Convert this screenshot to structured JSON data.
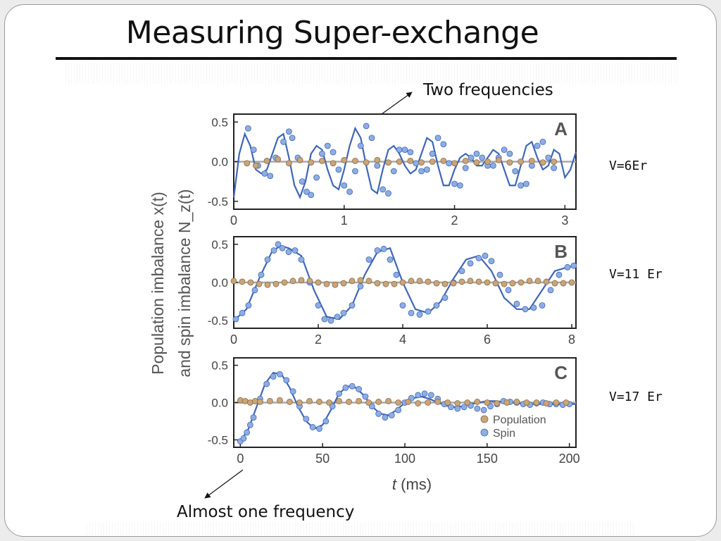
{
  "slide": {
    "title": "Measuring Super-exchange",
    "annotations": {
      "top": "Two frequencies",
      "bottom": "Almost one  frequency"
    },
    "side_labels": [
      "V=6Er",
      "V=11 Er",
      "V=17 Er"
    ]
  },
  "chart_data": [
    {
      "type": "scatter",
      "panel_label": "A",
      "xlim": [
        0,
        3.1
      ],
      "ylim": [
        -0.6,
        0.6
      ],
      "xticks": [
        0,
        1,
        2,
        3
      ],
      "yticks": [
        0.5,
        0.0,
        -0.5
      ],
      "ytick_labels": [
        "0.5",
        "0.0",
        "-0.5"
      ],
      "ylabel_lines": [
        "Population imbalance x(t)",
        "and spin imbalance N_z(t)"
      ],
      "series": [
        {
          "role": "spin-fit",
          "color": "#3f66b8",
          "x": [
            0.0,
            0.05,
            0.1,
            0.15,
            0.2,
            0.25,
            0.3,
            0.35,
            0.4,
            0.45,
            0.5,
            0.55,
            0.6,
            0.65,
            0.7,
            0.75,
            0.8,
            0.85,
            0.9,
            0.95,
            1.0,
            1.05,
            1.1,
            1.15,
            1.2,
            1.25,
            1.3,
            1.35,
            1.4,
            1.45,
            1.5,
            1.55,
            1.6,
            1.65,
            1.7,
            1.75,
            1.8,
            1.85,
            1.9,
            1.95,
            2.0,
            2.05,
            2.1,
            2.15,
            2.2,
            2.25,
            2.3,
            2.35,
            2.4,
            2.45,
            2.5,
            2.55,
            2.6,
            2.65,
            2.7,
            2.75,
            2.8,
            2.85,
            2.9,
            2.95,
            3.0,
            3.05,
            3.1
          ],
          "y": [
            -0.45,
            0.1,
            0.35,
            0.2,
            -0.1,
            -0.15,
            -0.1,
            0.1,
            0.3,
            0.35,
            0.05,
            -0.3,
            -0.45,
            -0.25,
            0.1,
            0.2,
            0.15,
            -0.1,
            -0.3,
            -0.35,
            -0.1,
            0.2,
            0.42,
            0.3,
            -0.05,
            -0.35,
            -0.4,
            -0.1,
            0.15,
            0.2,
            0.1,
            -0.05,
            -0.15,
            -0.1,
            0.1,
            0.3,
            0.25,
            -0.05,
            -0.3,
            -0.3,
            -0.1,
            0.05,
            0.1,
            0.05,
            -0.05,
            -0.05,
            0.05,
            0.15,
            0.1,
            -0.1,
            -0.3,
            -0.3,
            -0.05,
            0.2,
            0.25,
            0.05,
            -0.1,
            -0.05,
            0.15,
            0.1,
            -0.2,
            -0.1,
            0.12
          ]
        },
        {
          "role": "spin",
          "color": "#8eaee3",
          "x": [
            0.13,
            0.18,
            0.22,
            0.28,
            0.33,
            0.38,
            0.45,
            0.5,
            0.53,
            0.58,
            0.62,
            0.66,
            0.7,
            0.75,
            0.8,
            0.85,
            0.9,
            0.95,
            1.0,
            1.05,
            1.1,
            1.15,
            1.2,
            1.25,
            1.3,
            1.35,
            1.4,
            1.45,
            1.5,
            1.55,
            1.6,
            1.65,
            1.7,
            1.75,
            1.8,
            1.85,
            1.9,
            1.95,
            2.0,
            2.05,
            2.1,
            2.15,
            2.2,
            2.25,
            2.3,
            2.35,
            2.4,
            2.45,
            2.5,
            2.55,
            2.6,
            2.65,
            2.7,
            2.75,
            2.8,
            2.85,
            2.9
          ],
          "y": [
            0.42,
            0.15,
            -0.05,
            -0.15,
            -0.18,
            0.05,
            0.25,
            0.38,
            0.3,
            0.05,
            -0.25,
            -0.38,
            -0.42,
            -0.2,
            0.1,
            0.2,
            0.12,
            -0.1,
            -0.3,
            -0.38,
            -0.12,
            0.2,
            0.45,
            0.3,
            -0.05,
            -0.35,
            -0.4,
            -0.12,
            0.15,
            0.15,
            0.12,
            -0.02,
            -0.12,
            -0.1,
            0.1,
            0.3,
            0.22,
            -0.02,
            -0.28,
            -0.3,
            -0.08,
            0.05,
            0.1,
            0.05,
            -0.05,
            -0.05,
            0.05,
            0.15,
            0.1,
            -0.12,
            -0.3,
            -0.28,
            -0.05,
            0.2,
            0.25,
            0.05,
            -0.08
          ]
        },
        {
          "role": "population",
          "color": "#c9a57a",
          "x": [
            0.12,
            0.2,
            0.3,
            0.4,
            0.5,
            0.6,
            0.7,
            0.8,
            0.9,
            1.0,
            1.1,
            1.2,
            1.3,
            1.4,
            1.5,
            1.6,
            1.7,
            1.8,
            1.9,
            2.0,
            2.1,
            2.2,
            2.3,
            2.4,
            2.5,
            2.6,
            2.7,
            2.8,
            2.9
          ],
          "y": [
            -0.02,
            -0.05,
            0.01,
            0.03,
            -0.02,
            0.02,
            -0.01,
            0.01,
            -0.02,
            0.02,
            0.01,
            -0.01,
            0.02,
            -0.01,
            0.0,
            0.01,
            -0.01,
            0.0,
            0.01,
            -0.02,
            0.01,
            -0.01,
            0.0,
            0.02,
            -0.01,
            0.0,
            0.01,
            -0.01,
            0.0
          ]
        }
      ]
    },
    {
      "type": "scatter",
      "panel_label": "B",
      "xlim": [
        0,
        8.1
      ],
      "ylim": [
        -0.6,
        0.6
      ],
      "xticks": [
        0,
        2,
        4,
        6,
        8
      ],
      "yticks": [
        0.5,
        0.0,
        -0.5
      ],
      "ytick_labels": [
        "0.5",
        "0.0",
        "-0.5"
      ],
      "series": [
        {
          "role": "spin-fit",
          "color": "#3f66b8",
          "x": [
            0.0,
            0.3,
            0.6,
            0.9,
            1.1,
            1.3,
            1.6,
            1.9,
            2.2,
            2.5,
            2.8,
            3.1,
            3.4,
            3.7,
            4.0,
            4.3,
            4.6,
            4.9,
            5.2,
            5.5,
            5.8,
            6.1,
            6.4,
            6.7,
            7.0,
            7.3,
            7.6,
            7.9,
            8.1
          ],
          "y": [
            -0.5,
            -0.35,
            0.05,
            0.4,
            0.48,
            0.45,
            0.35,
            -0.1,
            -0.45,
            -0.48,
            -0.3,
            0.1,
            0.4,
            0.45,
            0.0,
            -0.35,
            -0.4,
            -0.25,
            0.05,
            0.3,
            0.35,
            0.15,
            -0.2,
            -0.35,
            -0.35,
            -0.1,
            0.15,
            0.2,
            0.22
          ]
        },
        {
          "role": "spin",
          "color": "#8eaee3",
          "x": [
            0.05,
            0.2,
            0.35,
            0.5,
            0.65,
            0.8,
            0.95,
            1.05,
            1.15,
            1.3,
            1.45,
            1.6,
            1.8,
            2.0,
            2.15,
            2.3,
            2.45,
            2.6,
            2.8,
            3.0,
            3.2,
            3.4,
            3.55,
            3.7,
            3.85,
            4.0,
            4.2,
            4.4,
            4.6,
            4.8,
            5.0,
            5.2,
            5.4,
            5.6,
            5.8,
            5.95,
            6.1,
            6.3,
            6.5,
            6.7,
            6.9,
            7.1,
            7.3,
            7.5,
            7.7,
            7.9,
            8.05
          ],
          "y": [
            -0.48,
            -0.4,
            -0.3,
            -0.1,
            0.1,
            0.3,
            0.42,
            0.5,
            0.45,
            0.4,
            0.42,
            0.3,
            0.0,
            -0.3,
            -0.48,
            -0.5,
            -0.45,
            -0.4,
            -0.3,
            -0.05,
            0.3,
            0.42,
            0.44,
            0.3,
            0.1,
            -0.3,
            -0.4,
            -0.42,
            -0.38,
            -0.3,
            -0.2,
            0.0,
            0.15,
            0.25,
            0.32,
            0.35,
            0.28,
            0.1,
            -0.1,
            -0.28,
            -0.35,
            -0.33,
            -0.3,
            -0.1,
            0.1,
            0.2,
            0.22
          ]
        },
        {
          "role": "population",
          "color": "#c9a57a",
          "x": [
            0.0,
            0.2,
            0.4,
            0.6,
            0.8,
            1.0,
            1.2,
            1.4,
            1.6,
            1.8,
            2.0,
            2.2,
            2.4,
            2.6,
            2.8,
            3.0,
            3.2,
            3.4,
            3.6,
            3.8,
            4.0,
            4.2,
            4.4,
            4.6,
            4.8,
            5.0,
            5.2,
            5.4,
            5.6,
            5.8,
            6.0,
            6.2,
            6.4,
            6.6,
            6.8,
            7.0,
            7.2,
            7.4,
            7.6,
            7.8,
            8.0
          ],
          "y": [
            0.02,
            0.01,
            0.0,
            -0.02,
            -0.03,
            -0.02,
            0.0,
            0.02,
            0.03,
            0.02,
            0.0,
            -0.02,
            -0.03,
            -0.01,
            0.02,
            0.03,
            0.02,
            -0.01,
            -0.02,
            -0.02,
            0.0,
            0.02,
            0.02,
            0.01,
            -0.01,
            -0.02,
            -0.01,
            0.01,
            0.02,
            0.01,
            0.0,
            -0.01,
            -0.02,
            -0.01,
            0.0,
            0.02,
            0.02,
            0.01,
            -0.01,
            -0.01,
            0.0
          ]
        }
      ]
    },
    {
      "type": "scatter",
      "panel_label": "C",
      "xlim": [
        -4,
        204
      ],
      "ylim": [
        -0.6,
        0.6
      ],
      "xticks": [
        0,
        50,
        100,
        150,
        200
      ],
      "yticks": [
        0.5,
        0.0,
        -0.5
      ],
      "ytick_labels": [
        "0.5",
        "0.0",
        "-0.5"
      ],
      "xlabel_italic": "t",
      "xlabel_rest": " (ms)",
      "legend": {
        "placement": "bottom-right",
        "entries": [
          "Population",
          "Spin"
        ]
      },
      "series": [
        {
          "role": "spin-fit",
          "color": "#3f66b8",
          "x": [
            0,
            5,
            10,
            15,
            20,
            25,
            30,
            35,
            40,
            45,
            50,
            55,
            60,
            65,
            70,
            75,
            80,
            85,
            90,
            95,
            100,
            105,
            110,
            115,
            120,
            125,
            130,
            135,
            140,
            145,
            150,
            155,
            160,
            165,
            170,
            175,
            180,
            185,
            190,
            195,
            200,
            205
          ],
          "y": [
            -0.52,
            -0.35,
            -0.05,
            0.25,
            0.4,
            0.38,
            0.2,
            -0.05,
            -0.25,
            -0.35,
            -0.3,
            -0.1,
            0.12,
            0.22,
            0.2,
            0.1,
            -0.05,
            -0.15,
            -0.17,
            -0.1,
            0.0,
            0.06,
            0.08,
            0.05,
            0.0,
            -0.04,
            -0.06,
            -0.05,
            -0.02,
            0.0,
            0.02,
            0.02,
            0.01,
            0.0,
            -0.01,
            -0.02,
            -0.02,
            -0.02,
            -0.02,
            -0.02,
            -0.02,
            -0.02
          ]
        },
        {
          "role": "spin",
          "color": "#8eaee3",
          "x": [
            0,
            2,
            4,
            6,
            8,
            12,
            16,
            20,
            24,
            28,
            32,
            36,
            40,
            44,
            48,
            52,
            56,
            60,
            64,
            68,
            72,
            76,
            80,
            84,
            88,
            92,
            96,
            100,
            104,
            108,
            112,
            116,
            120,
            124,
            128,
            132,
            136,
            140,
            144,
            148,
            152,
            156,
            160,
            164,
            168,
            172,
            176,
            180,
            184,
            188,
            192,
            196,
            200
          ],
          "y": [
            -0.52,
            -0.48,
            -0.4,
            -0.3,
            -0.2,
            0.05,
            0.25,
            0.35,
            0.38,
            0.3,
            0.15,
            -0.05,
            -0.22,
            -0.33,
            -0.35,
            -0.25,
            -0.05,
            0.12,
            0.2,
            0.22,
            0.18,
            0.08,
            -0.05,
            -0.15,
            -0.2,
            -0.17,
            -0.1,
            0.0,
            0.06,
            0.1,
            0.12,
            0.1,
            0.05,
            -0.02,
            -0.06,
            -0.08,
            -0.06,
            -0.04,
            -0.08,
            -0.1,
            -0.05,
            -0.02,
            0.02,
            0.01,
            0.0,
            -0.02,
            -0.03,
            -0.01,
            0.0,
            -0.02,
            -0.02,
            -0.03,
            -0.02
          ]
        },
        {
          "role": "population",
          "color": "#c9a57a",
          "x": [
            0,
            3,
            6,
            9,
            12,
            18,
            24,
            30,
            36,
            42,
            48,
            54,
            60,
            66,
            72,
            78,
            84,
            90,
            96,
            102,
            108,
            114,
            120,
            126,
            132,
            138,
            144,
            150,
            156,
            162,
            168,
            174,
            180,
            186,
            192,
            198
          ],
          "y": [
            0.03,
            0.02,
            0.0,
            0.02,
            0.01,
            0.02,
            0.03,
            0.01,
            0.0,
            0.02,
            0.01,
            0.0,
            0.02,
            0.01,
            0.02,
            0.0,
            0.01,
            0.02,
            0.0,
            0.01,
            -0.01,
            0.0,
            0.01,
            0.0,
            -0.01,
            0.0,
            0.01,
            0.0,
            -0.01,
            0.0,
            0.01,
            0.0,
            0.0,
            -0.01,
            0.0,
            0.0
          ]
        }
      ]
    }
  ]
}
